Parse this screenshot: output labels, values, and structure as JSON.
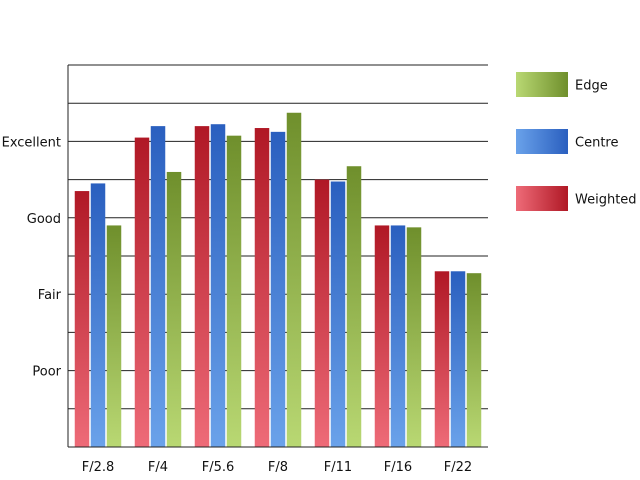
{
  "chart_data": {
    "type": "bar",
    "categories": [
      "F/2.8",
      "F/4",
      "F/5.6",
      "F/8",
      "F/11",
      "F/16",
      "F/22"
    ],
    "series": [
      {
        "name": "Weighted",
        "values": [
          6.7,
          8.1,
          8.4,
          8.35,
          7.0,
          5.8,
          4.6
        ],
        "color_dark": "#b01825",
        "color_light": "#ee6b78"
      },
      {
        "name": "Centre",
        "values": [
          6.9,
          8.4,
          8.45,
          8.25,
          6.95,
          5.8,
          4.6
        ],
        "color_dark": "#2a5fbf",
        "color_light": "#6aa2ea"
      },
      {
        "name": "Edge",
        "values": [
          5.8,
          7.2,
          8.15,
          8.75,
          7.35,
          5.75,
          4.55
        ],
        "color_dark": "#6f8f2c",
        "color_light": "#b9d873"
      }
    ],
    "y_tick_labels": [
      {
        "label": "Poor",
        "value": 2
      },
      {
        "label": "Fair",
        "value": 4
      },
      {
        "label": "Good",
        "value": 6
      },
      {
        "label": "Excellent",
        "value": 8
      }
    ],
    "ylim": [
      0,
      10
    ],
    "gridline_step": 1,
    "grid": true,
    "legend_position": "right",
    "legend_order": [
      "Edge",
      "Centre",
      "Weighted"
    ],
    "title": "",
    "xlabel": "",
    "ylabel": ""
  }
}
